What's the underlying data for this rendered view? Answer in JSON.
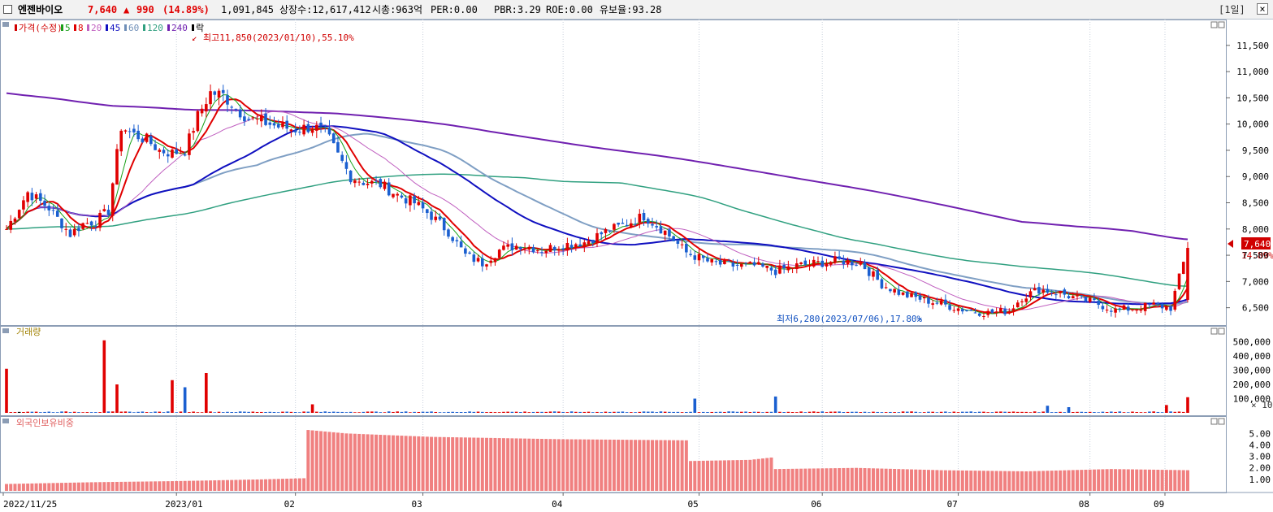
{
  "header": {
    "name": "엔젠바이오",
    "price": "7,640",
    "arrow": "▲",
    "change": "990",
    "change_pct": "(14.89%)",
    "volume": "1,091,845",
    "listed": "상장수:12,617,412",
    "mcap": "시총:963억",
    "per": "PER:0.00",
    "pbr": "PBR:3.29",
    "roe": "ROE:0.00",
    "float": "유보율:93.28",
    "period": "[1일]",
    "close": "×"
  },
  "panels": {
    "price": {
      "legend": [
        {
          "text": "가격(수정)",
          "color": "#d00000"
        },
        {
          "text": "5",
          "color": "#18a018"
        },
        {
          "text": "8",
          "color": "#e00000"
        },
        {
          "text": "20",
          "color": "#c060c0"
        },
        {
          "text": "45",
          "color": "#1010c0"
        },
        {
          "text": "60",
          "color": "#6f8fb8"
        },
        {
          "text": "120",
          "color": "#30a080"
        },
        {
          "text": "240",
          "color": "#7020b0"
        },
        {
          "text": "락",
          "color": "#000000"
        }
      ],
      "high_note": "최고11,850(2023/01/10),55.10%",
      "low_note": "최저6,280(2023/07/06),17.80%",
      "current_tag": "7,640",
      "current_pct": "14.89%",
      "yticks": [
        "11,500",
        "11,000",
        "10,500",
        "10,000",
        "9,500",
        "9,000",
        "8,500",
        "8,000",
        "7,500",
        "7,000",
        "6,500"
      ]
    },
    "volume": {
      "label": "거래량",
      "yticks": [
        "500,000",
        "400,000",
        "300,000",
        "200,000",
        "100,000"
      ],
      "unit": "× 10"
    },
    "foreign": {
      "label": "외국인보유비중",
      "yticks": [
        "5.00",
        "4.00",
        "3.00",
        "2.00",
        "1.00"
      ]
    }
  },
  "chart_data": {
    "type": "candlestick",
    "x_axis_labels": [
      "2022/11/25",
      "2023/01",
      "02",
      "03",
      "04",
      "05",
      "06",
      "07",
      "08",
      "09"
    ],
    "price_ylim": [
      6200,
      11900
    ],
    "volume_ylim": [
      0,
      560000
    ],
    "foreign_ylim": [
      0,
      5.8
    ],
    "close_keypoints": [
      [
        0,
        8000
      ],
      [
        5,
        8700
      ],
      [
        10,
        8400
      ],
      [
        15,
        7900
      ],
      [
        18,
        8100
      ],
      [
        21,
        8150
      ],
      [
        24,
        8350
      ],
      [
        27,
        9950
      ],
      [
        30,
        9800
      ],
      [
        33,
        9700
      ],
      [
        36,
        9500
      ],
      [
        39,
        9450
      ],
      [
        42,
        9500
      ],
      [
        45,
        10150
      ],
      [
        48,
        10600
      ],
      [
        51,
        10550
      ],
      [
        54,
        10300
      ],
      [
        57,
        10100
      ],
      [
        60,
        10050
      ],
      [
        64,
        9950
      ],
      [
        68,
        9900
      ],
      [
        72,
        9950
      ],
      [
        75,
        9850
      ],
      [
        78,
        9400
      ],
      [
        81,
        9000
      ],
      [
        84,
        8900
      ],
      [
        88,
        8850
      ],
      [
        92,
        8650
      ],
      [
        96,
        8500
      ],
      [
        100,
        8250
      ],
      [
        104,
        7950
      ],
      [
        108,
        7500
      ],
      [
        112,
        7350
      ],
      [
        116,
        7600
      ],
      [
        121,
        7700
      ],
      [
        126,
        7600
      ],
      [
        131,
        7700
      ],
      [
        136,
        7750
      ],
      [
        141,
        7950
      ],
      [
        146,
        8100
      ],
      [
        150,
        8250
      ],
      [
        155,
        7950
      ],
      [
        160,
        7550
      ],
      [
        166,
        7350
      ],
      [
        171,
        7300
      ],
      [
        176,
        7300
      ],
      [
        181,
        7200
      ],
      [
        186,
        7300
      ],
      [
        191,
        7350
      ],
      [
        196,
        7400
      ],
      [
        201,
        7350
      ],
      [
        206,
        6950
      ],
      [
        211,
        6750
      ],
      [
        216,
        6650
      ],
      [
        221,
        6550
      ],
      [
        226,
        6450
      ],
      [
        231,
        6400
      ],
      [
        236,
        6450
      ],
      [
        239,
        6700
      ],
      [
        243,
        6850
      ],
      [
        247,
        6800
      ],
      [
        251,
        6700
      ],
      [
        256,
        6600
      ],
      [
        261,
        6450
      ],
      [
        266,
        6500
      ],
      [
        270,
        6550
      ],
      [
        274,
        6500
      ],
      [
        278,
        7640
      ]
    ],
    "candle_count": 279,
    "volume_spikes": [
      [
        0,
        310000
      ],
      [
        23,
        510000
      ],
      [
        26,
        200000
      ],
      [
        39,
        230000
      ],
      [
        42,
        180000
      ],
      [
        47,
        280000
      ],
      [
        72,
        60000
      ],
      [
        162,
        100000
      ],
      [
        181,
        115000
      ],
      [
        245,
        50000
      ],
      [
        250,
        40000
      ],
      [
        273,
        55000
      ],
      [
        278,
        110000
      ]
    ],
    "foreign_ratio_keypoints": [
      [
        0,
        0.6
      ],
      [
        20,
        0.75
      ],
      [
        40,
        0.85
      ],
      [
        60,
        1.0
      ],
      [
        70,
        1.1
      ],
      [
        71,
        5.3
      ],
      [
        80,
        5.0
      ],
      [
        100,
        4.7
      ],
      [
        130,
        4.5
      ],
      [
        160,
        4.4
      ],
      [
        161,
        2.6
      ],
      [
        175,
        2.7
      ],
      [
        180,
        2.9
      ],
      [
        181,
        1.9
      ],
      [
        200,
        2.0
      ],
      [
        220,
        1.8
      ],
      [
        240,
        1.7
      ],
      [
        260,
        1.9
      ],
      [
        278,
        1.8
      ]
    ],
    "moving_averages": [
      "5",
      "8",
      "20",
      "45",
      "60",
      "120",
      "240"
    ]
  }
}
